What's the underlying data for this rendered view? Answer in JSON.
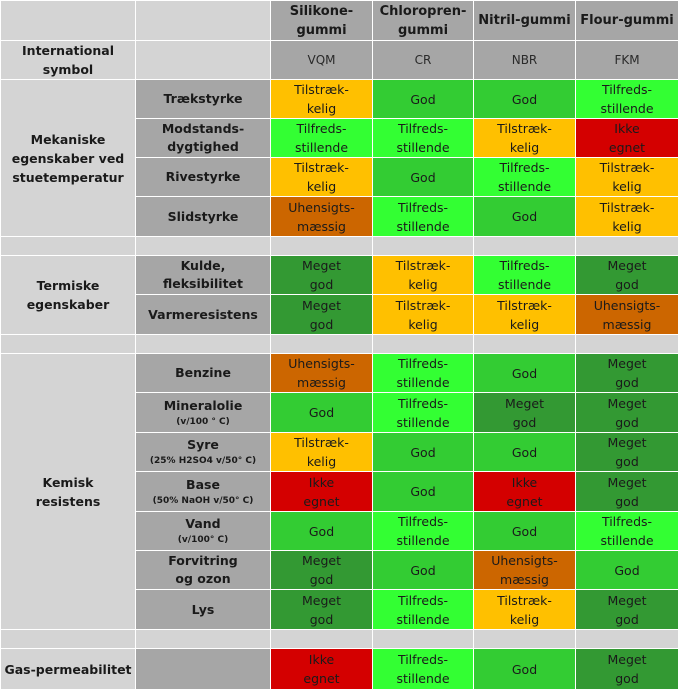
{
  "colors": {
    "ikke_egnet": "#d40000",
    "uhensigtsmaessig": "#cc6600",
    "tilstraekkelig": "#ffc000",
    "god": "#33cc33",
    "tilfredsstillende": "#33ff33",
    "meget_god": "#339933",
    "header_grey": "#a6a6a6",
    "light_grey": "#d4d4d4"
  },
  "columns": [
    {
      "name": "Silikone-\ngummi",
      "symbol": "VQM"
    },
    {
      "name": "Chloropren-\ngummi",
      "symbol": "CR"
    },
    {
      "name": "Nitril-gummi",
      "symbol": "NBR"
    },
    {
      "name": "Flour-gummi",
      "symbol": "FKM"
    }
  ],
  "symbol_row_label": "International\nsymbol",
  "groups": {
    "mek": "Mekaniske\negenskaber ved\nstuetemperatur",
    "term": "Termiske\negenskaber",
    "kem": "Kemisk\nresistens",
    "gas": "Gas-permeabilitet"
  },
  "rows": [
    {
      "label": "Trækstyrke",
      "note": "",
      "values": [
        {
          "text": "Tilstræk-\nkelig",
          "level": "tilstraekkelig"
        },
        {
          "text": "God",
          "level": "god"
        },
        {
          "text": "God",
          "level": "god"
        },
        {
          "text": "Tilfreds-\nstillende",
          "level": "tilfredsstillende"
        }
      ]
    },
    {
      "label": "Modstands-\ndygtighed",
      "note": "",
      "values": [
        {
          "text": "Tilfreds-\nstillende",
          "level": "tilfredsstillende"
        },
        {
          "text": "Tilfreds-\nstillende",
          "level": "tilfredsstillende"
        },
        {
          "text": "Tilstræk-\nkelig",
          "level": "tilstraekkelig"
        },
        {
          "text": "Ikke\negnet",
          "level": "ikke_egnet"
        }
      ]
    },
    {
      "label": "Rivestyrke",
      "note": "",
      "values": [
        {
          "text": "Tilstræk-\nkelig",
          "level": "tilstraekkelig"
        },
        {
          "text": "God",
          "level": "god"
        },
        {
          "text": "Tilfreds-\nstillende",
          "level": "tilfredsstillende"
        },
        {
          "text": "Tilstræk-\nkelig",
          "level": "tilstraekkelig"
        }
      ]
    },
    {
      "label": "Slidstyrke",
      "note": "",
      "values": [
        {
          "text": "Uhensigts-\nmæssig",
          "level": "uhensigtsmaessig"
        },
        {
          "text": "Tilfreds-\nstillende",
          "level": "tilfredsstillende"
        },
        {
          "text": "God",
          "level": "god"
        },
        {
          "text": "Tilstræk-\nkelig",
          "level": "tilstraekkelig"
        }
      ]
    },
    {
      "label": "Kulde,\nfleksibilitet",
      "note": "",
      "values": [
        {
          "text": "Meget\ngod",
          "level": "meget_god"
        },
        {
          "text": "Tilstræk-\nkelig",
          "level": "tilstraekkelig"
        },
        {
          "text": "Tilfreds-\nstillende",
          "level": "tilfredsstillende"
        },
        {
          "text": "Meget\ngod",
          "level": "meget_god"
        }
      ]
    },
    {
      "label": "Varmeresistens",
      "note": "",
      "values": [
        {
          "text": "Meget\ngod",
          "level": "meget_god"
        },
        {
          "text": "Tilstræk-\nkelig",
          "level": "tilstraekkelig"
        },
        {
          "text": "Tilstræk-\nkelig",
          "level": "tilstraekkelig"
        },
        {
          "text": "Uhensigts-\nmæssig",
          "level": "uhensigtsmaessig"
        }
      ]
    },
    {
      "label": "Benzine",
      "note": "",
      "values": [
        {
          "text": "Uhensigts-\nmæssig",
          "level": "uhensigtsmaessig"
        },
        {
          "text": "Tilfreds-\nstillende",
          "level": "tilfredsstillende"
        },
        {
          "text": "God",
          "level": "god"
        },
        {
          "text": "Meget\ngod",
          "level": "meget_god"
        }
      ]
    },
    {
      "label": "Mineralolie",
      "note": "(v/100 ° C)",
      "values": [
        {
          "text": "God",
          "level": "god"
        },
        {
          "text": "Tilfreds-\nstillende",
          "level": "tilfredsstillende"
        },
        {
          "text": "Meget\ngod",
          "level": "meget_god"
        },
        {
          "text": "Meget\ngod",
          "level": "meget_god"
        }
      ]
    },
    {
      "label": "Syre",
      "note": "(25% H2SO4 v/50° C)",
      "values": [
        {
          "text": "Tilstræk-\nkelig",
          "level": "tilstraekkelig"
        },
        {
          "text": "God",
          "level": "god"
        },
        {
          "text": "God",
          "level": "god"
        },
        {
          "text": "Meget\ngod",
          "level": "meget_god"
        }
      ]
    },
    {
      "label": "Base",
      "note": "(50% NaOH v/50° C)",
      "values": [
        {
          "text": "Ikke\negnet",
          "level": "ikke_egnet"
        },
        {
          "text": "God",
          "level": "god"
        },
        {
          "text": "Ikke\negnet",
          "level": "ikke_egnet"
        },
        {
          "text": "Meget\ngod",
          "level": "meget_god"
        }
      ]
    },
    {
      "label": "Vand",
      "note": "(v/100° C)",
      "values": [
        {
          "text": "God",
          "level": "god"
        },
        {
          "text": "Tilfreds-\nstillende",
          "level": "tilfredsstillende"
        },
        {
          "text": "God",
          "level": "god"
        },
        {
          "text": "Tilfreds-\nstillende",
          "level": "tilfredsstillende"
        }
      ]
    },
    {
      "label": "Forvitring\nog ozon",
      "note": "",
      "values": [
        {
          "text": "Meget\ngod",
          "level": "meget_god"
        },
        {
          "text": "God",
          "level": "god"
        },
        {
          "text": "Uhensigts-\nmæssig",
          "level": "uhensigtsmaessig"
        },
        {
          "text": "God",
          "level": "god"
        }
      ]
    },
    {
      "label": "Lys",
      "note": "",
      "values": [
        {
          "text": "Meget\ngod",
          "level": "meget_god"
        },
        {
          "text": "Tilfreds-\nstillende",
          "level": "tilfredsstillende"
        },
        {
          "text": "Tilstræk-\nkelig",
          "level": "tilstraekkelig"
        },
        {
          "text": "Meget\ngod",
          "level": "meget_god"
        }
      ]
    },
    {
      "label": "",
      "note": "",
      "values": [
        {
          "text": "Ikke\negnet",
          "level": "ikke_egnet"
        },
        {
          "text": "Tilfreds-\nstillende",
          "level": "tilfredsstillende"
        },
        {
          "text": "God",
          "level": "god"
        },
        {
          "text": "Meget\ngod",
          "level": "meget_god"
        }
      ]
    }
  ]
}
